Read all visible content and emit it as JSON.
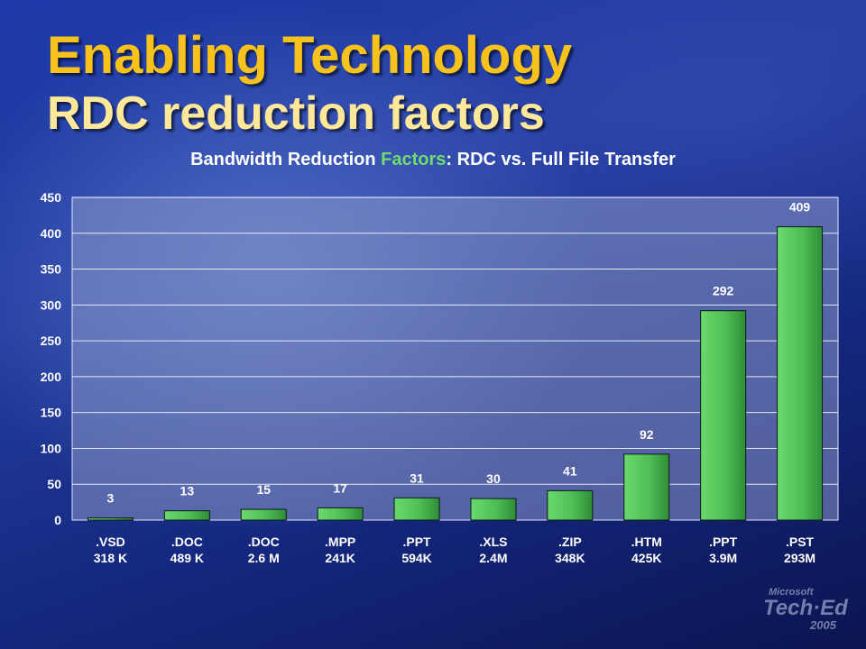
{
  "slide": {
    "title_line1": "Enabling Technology",
    "title_line2": "RDC reduction factors",
    "chart_title_part1": "Bandwidth Reduction ",
    "chart_title_accent": "Factors",
    "chart_title_part2": ": RDC vs. Full File Transfer",
    "logo_brand": "Microsoft",
    "logo_event": "Tech·Ed",
    "logo_year": "2005"
  },
  "colors": {
    "title": "#f7c21c",
    "subtitle": "#ffe89a",
    "accent_word": "#6fdc6f",
    "bar_fill": "#4fbf55",
    "plot_area": "#8a98c8"
  },
  "chart_data": {
    "type": "bar",
    "title": "Bandwidth Reduction Factors: RDC vs. Full File Transfer",
    "categories": [
      [
        ".VSD",
        "318 K"
      ],
      [
        ".DOC",
        "489 K"
      ],
      [
        ".DOC",
        "2.6 M"
      ],
      [
        ".MPP",
        "241K"
      ],
      [
        ".PPT",
        "594K"
      ],
      [
        ".XLS",
        "2.4M"
      ],
      [
        ".ZIP",
        "348K"
      ],
      [
        ".HTM",
        "425K"
      ],
      [
        ".PPT",
        "3.9M"
      ],
      [
        ".PST",
        "293M"
      ]
    ],
    "values": [
      3,
      13,
      15,
      17,
      31,
      30,
      41,
      92,
      292,
      409
    ],
    "ylim": [
      0,
      450
    ],
    "yticks": [
      0,
      50,
      100,
      150,
      200,
      250,
      300,
      350,
      400,
      450
    ],
    "grid": true,
    "legend": "none",
    "data_labels": true
  }
}
